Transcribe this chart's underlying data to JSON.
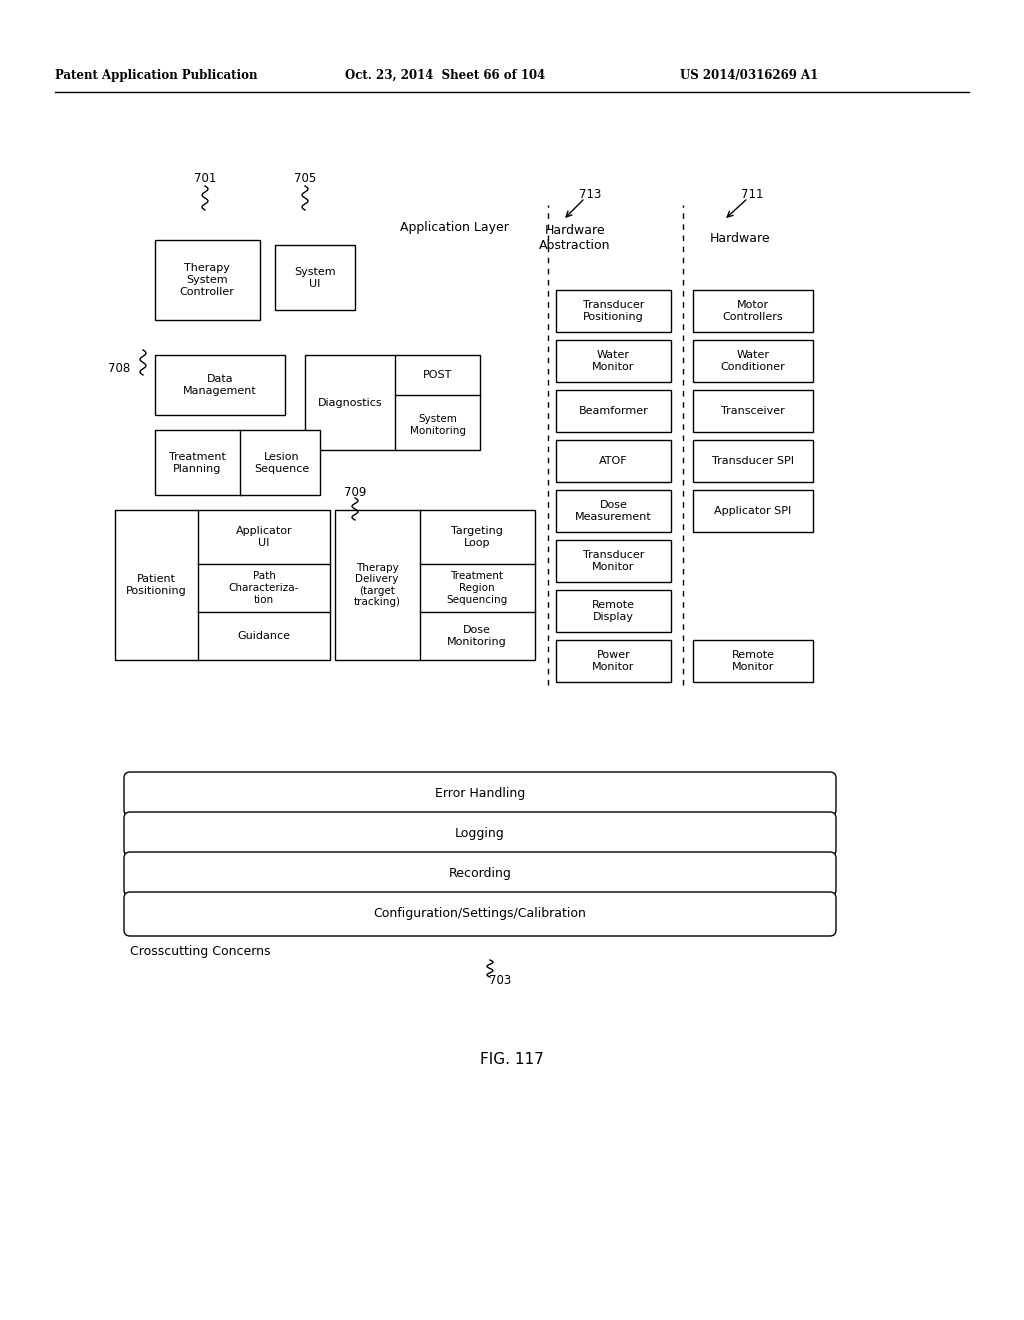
{
  "header_left": "Patent Application Publication",
  "header_mid": "Oct. 23, 2014  Sheet 66 of 104",
  "header_right": "US 2014/0316269 A1",
  "figure_label": "FIG. 117",
  "bg_color": "#ffffff",
  "box_edge_color": "#000000",
  "box_fill": "#ffffff",
  "app_layer_label": "Application Layer",
  "hw_abstraction_label": "Hardware\nAbstraction",
  "hw_label": "Hardware",
  "hw_abs_boxes": [
    "Transducer\nPositioning",
    "Water\nMonitor",
    "Beamformer",
    "ATOF",
    "Dose\nMeasurement",
    "Transducer\nMonitor",
    "Remote\nDisplay",
    "Power\nMonitor"
  ],
  "hw_boxes_top5": [
    "Motor\nControllers",
    "Water\nConditioner",
    "Transceiver",
    "Transducer SPI",
    "Applicator SPI"
  ],
  "hw_box_remote": "Remote\nMonitor",
  "bottom_bars": [
    "Error Handling",
    "Logging",
    "Recording",
    "Configuration/Settings/Calibration"
  ],
  "crosscutting_label": "Crosscutting Concerns",
  "crosscutting_ref": "703"
}
